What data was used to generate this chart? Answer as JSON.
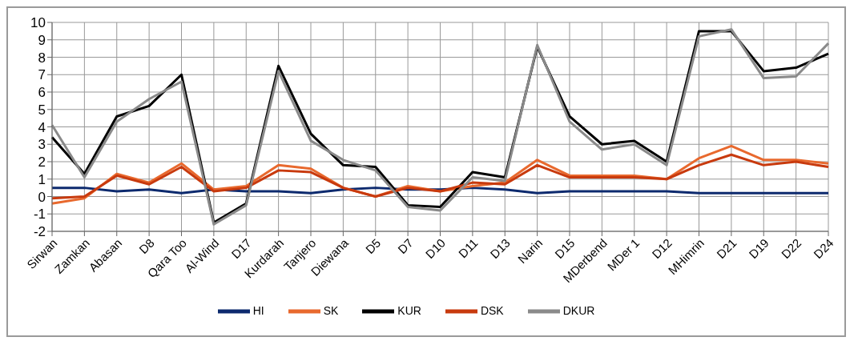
{
  "chart_data": {
    "type": "line",
    "categories": [
      "Sirwan",
      "Zamkan",
      "Abasan",
      "D8",
      "Qara Too",
      "Al-Wind",
      "D17",
      "Kurdarah",
      "Tanjero",
      "Diewana",
      "D5",
      "D7",
      "D10",
      "D11",
      "D13",
      "Narin",
      "D15",
      "MDerbend",
      "MDer 1",
      "D12",
      "MHimrin",
      "D21",
      "D19",
      "D22",
      "D24"
    ],
    "series": [
      {
        "name": "HI",
        "color": "#0d2a6e",
        "values": [
          0.5,
          0.5,
          0.3,
          0.4,
          0.2,
          0.4,
          0.3,
          0.3,
          0.2,
          0.4,
          0.5,
          0.4,
          0.4,
          0.5,
          0.4,
          0.2,
          0.3,
          0.3,
          0.3,
          0.3,
          0.2,
          0.2,
          0.2,
          0.2,
          0.2
        ]
      },
      {
        "name": "SK",
        "color": "#e8692e",
        "values": [
          -0.4,
          -0.1,
          1.3,
          0.8,
          1.9,
          0.4,
          0.6,
          1.8,
          1.6,
          0.5,
          0.0,
          0.6,
          0.3,
          0.6,
          0.8,
          2.1,
          1.2,
          1.2,
          1.2,
          1.0,
          2.2,
          2.9,
          2.1,
          2.1,
          1.9
        ]
      },
      {
        "name": "KUR",
        "color": "#000000",
        "values": [
          3.4,
          1.3,
          4.6,
          5.2,
          7.0,
          -1.5,
          -0.4,
          7.5,
          3.6,
          1.8,
          1.7,
          -0.5,
          -0.6,
          1.4,
          1.1,
          8.6,
          4.6,
          3.0,
          3.2,
          2.0,
          9.5,
          9.5,
          7.2,
          7.4,
          8.2
        ]
      },
      {
        "name": "DSK",
        "color": "#c83a0e",
        "values": [
          -0.1,
          0.0,
          1.2,
          0.7,
          1.7,
          0.3,
          0.5,
          1.5,
          1.4,
          0.5,
          0.0,
          0.5,
          0.3,
          0.8,
          0.7,
          1.8,
          1.1,
          1.1,
          1.1,
          1.0,
          1.8,
          2.4,
          1.8,
          2.0,
          1.7
        ]
      },
      {
        "name": "DKUR",
        "color": "#8a8a8a",
        "values": [
          4.1,
          1.1,
          4.3,
          5.6,
          6.6,
          -1.6,
          -0.5,
          7.2,
          3.2,
          2.1,
          1.5,
          -0.6,
          -0.8,
          1.1,
          0.9,
          8.7,
          4.3,
          2.7,
          3.0,
          1.8,
          9.2,
          9.6,
          6.8,
          6.9,
          8.8
        ]
      }
    ],
    "ylim": [
      -2,
      10
    ],
    "yticks": [
      -2,
      -1,
      0,
      1,
      2,
      3,
      4,
      5,
      6,
      7,
      8,
      9,
      10
    ],
    "grid": true,
    "legend": "bottom",
    "marker": "none",
    "line_style": "solid"
  }
}
